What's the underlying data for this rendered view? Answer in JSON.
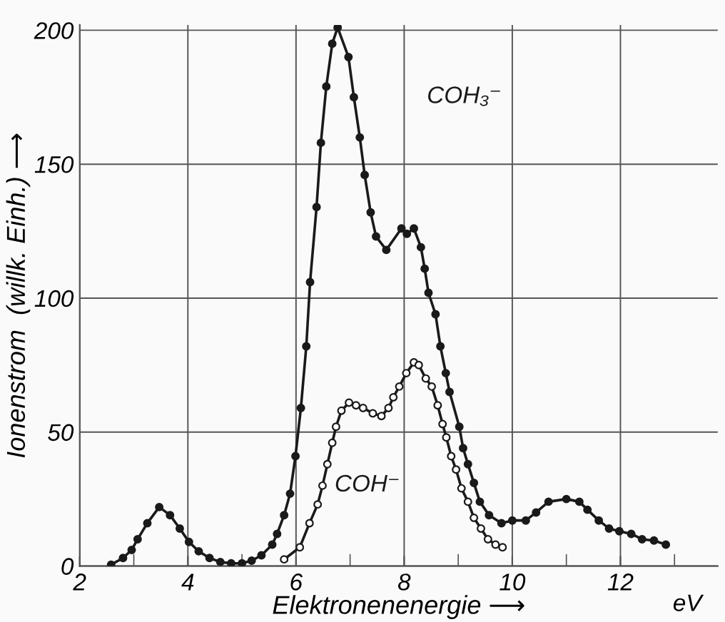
{
  "chart_data": {
    "type": "line",
    "xlabel": "Elektronenenergie ⟶",
    "ylabel": "Ionenstrom  (willk. Einh.) ⟶",
    "annotations": [
      "eV"
    ],
    "xlim": [
      2,
      13.8
    ],
    "ylim": [
      0,
      202
    ],
    "xticks": [
      2,
      {
        "value": 3,
        "label": null
      },
      4,
      {
        "value": 5,
        "label": null
      },
      6,
      {
        "value": 7,
        "label": null
      },
      8,
      {
        "value": 9,
        "label": null
      },
      10,
      {
        "value": 11,
        "label": null
      },
      12,
      {
        "value": 13,
        "label": null
      }
    ],
    "yticks": [
      0,
      50,
      100,
      150,
      200
    ],
    "grid": true,
    "legend": false,
    "marker": "circle",
    "line_style": "solid",
    "series": [
      {
        "name": "COH₃⁻",
        "color": "#1a1a1a",
        "x": [
          2.58,
          2.8,
          2.96,
          3.07,
          3.25,
          3.47,
          3.67,
          3.85,
          4.02,
          4.2,
          4.4,
          4.6,
          4.8,
          5.0,
          5.18,
          5.36,
          5.56,
          5.65,
          5.78,
          5.89,
          5.99,
          6.09,
          6.19,
          6.26,
          6.38,
          6.46,
          6.56,
          6.67,
          6.77,
          6.97,
          7.07,
          7.18,
          7.27,
          7.38,
          7.48,
          7.67,
          7.95,
          8.05,
          8.18,
          8.31,
          8.38,
          8.45,
          8.58,
          8.67,
          8.77,
          8.84,
          9.02,
          9.09,
          9.18,
          9.29,
          9.4,
          9.57,
          9.8,
          10.0,
          10.25,
          10.44,
          10.67,
          11.0,
          11.24,
          11.39,
          11.6,
          11.79,
          11.98,
          12.2,
          12.4,
          12.62,
          12.84
        ],
        "values": [
          0.5,
          3,
          6,
          10,
          16,
          22,
          19,
          14,
          9,
          5.5,
          3,
          1.5,
          1,
          1,
          2,
          4,
          8,
          12,
          19,
          27,
          41,
          59,
          82,
          106,
          134,
          158,
          179,
          195,
          201,
          190,
          175,
          160,
          146,
          132,
          123,
          118,
          126,
          124,
          126,
          119,
          111,
          102,
          94,
          82,
          72,
          65,
          52,
          44,
          38,
          31,
          24,
          19,
          16,
          17,
          17,
          20,
          24,
          25,
          24,
          21,
          17,
          14,
          13,
          12,
          10,
          9.5,
          8
        ]
      },
      {
        "name": "COH⁻",
        "color": "#1a1a1a",
        "x": [
          5.78,
          6.07,
          6.25,
          6.4,
          6.49,
          6.58,
          6.67,
          6.74,
          6.84,
          6.98,
          7.11,
          7.24,
          7.42,
          7.58,
          7.71,
          7.8,
          7.91,
          8.04,
          8.18,
          8.27,
          8.4,
          8.51,
          8.62,
          8.71,
          8.78,
          8.87,
          8.96,
          9.06,
          9.18,
          9.29,
          9.42,
          9.55,
          9.69,
          9.82
        ],
        "values": [
          2.5,
          7,
          16,
          23,
          30,
          38,
          46,
          52,
          58,
          61,
          60,
          59,
          57,
          56,
          59,
          63,
          67,
          72,
          76,
          75,
          70,
          67,
          60,
          53,
          48,
          41,
          36,
          29,
          24,
          18,
          14,
          10,
          8,
          7
        ]
      }
    ]
  }
}
